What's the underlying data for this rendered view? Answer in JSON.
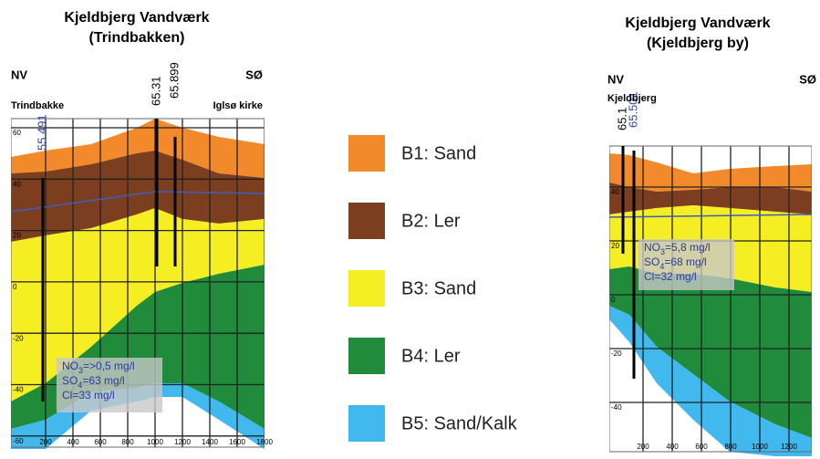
{
  "left": {
    "title": "Kjeldbjerg Vandværk",
    "subtitle": "(Trindbakken)",
    "dir_left": "NV",
    "dir_right": "SØ",
    "place_left": "Trindbakke",
    "place_right": "Iglsø kirke",
    "wells": [
      "65.31",
      "65.899",
      "55.491"
    ],
    "yticks": [
      "60",
      "40",
      "20",
      "0",
      "-20",
      "-40",
      "-60"
    ],
    "xticks": [
      "200",
      "400",
      "600",
      "800",
      "1000",
      "1200",
      "1400",
      "1600",
      "1800"
    ],
    "chem": [
      [
        "NO",
        "3",
        "=>0,5 mg/l"
      ],
      [
        "SO",
        "4",
        "=63 mg/l"
      ],
      [
        "Cl=33 mg/l"
      ]
    ]
  },
  "right": {
    "title": "Kjeldbjerg Vandværk",
    "subtitle": "(Kjeldbjerg by)",
    "dir_left": "NV",
    "dir_right": "SØ",
    "place_left": "Kjeldbjerg",
    "wells": [
      "65.1",
      "65.501"
    ],
    "yticks": [
      "40",
      "20",
      "0",
      "-20",
      "-40"
    ],
    "xticks": [
      "200",
      "400",
      "600",
      "800",
      "1000",
      "1200"
    ],
    "chem": [
      [
        "NO",
        "3",
        "=5,8 mg/l"
      ],
      [
        "SO",
        "4",
        "=68 mg/l"
      ],
      [
        "Cl=32 mg/l"
      ]
    ]
  },
  "legend": [
    {
      "label": "B1: Sand",
      "color": "#f28a2c"
    },
    {
      "label": "B2: Ler",
      "color": "#7b3f1f"
    },
    {
      "label": "B3: Sand",
      "color": "#f4ee22"
    },
    {
      "label": "B4: Ler",
      "color": "#1f8b3b"
    },
    {
      "label": "B5: Sand/Kalk",
      "color": "#41b9ef"
    }
  ]
}
